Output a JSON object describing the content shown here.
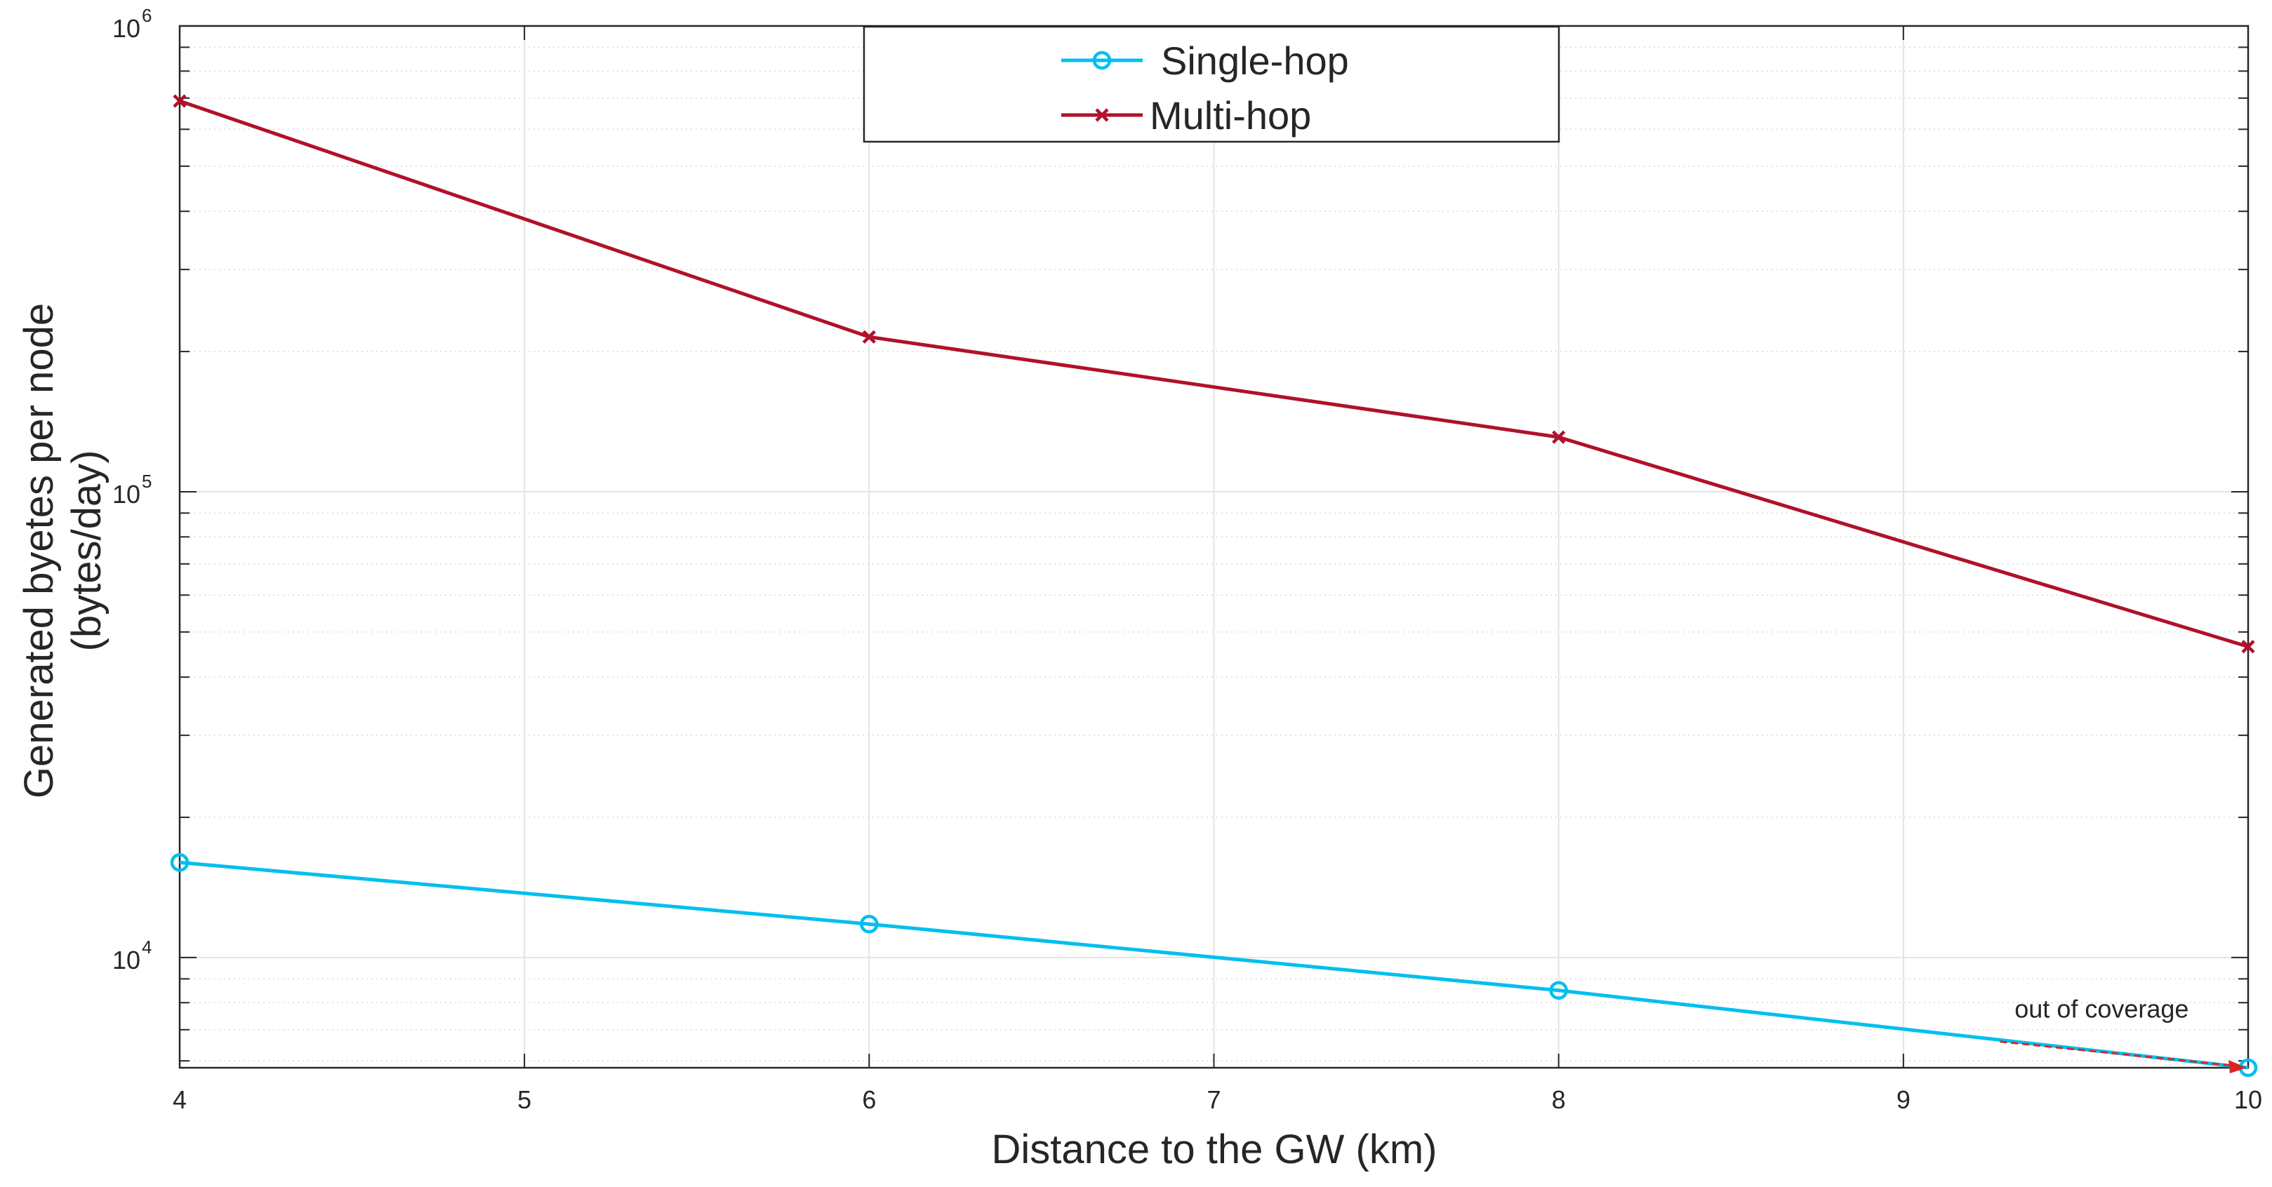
{
  "chart_data": {
    "type": "line",
    "title": "",
    "xlabel": "Distance to the GW (km)",
    "ylabel_line1": "Generated byetes per node",
    "ylabel_line2": "(bytes/day)",
    "xlim": [
      4,
      10
    ],
    "ylim": [
      5800,
      1000000
    ],
    "yscale": "log",
    "grid": true,
    "minor_grid": true,
    "legend_position": "top-center",
    "x_ticks": [
      4,
      5,
      6,
      7,
      8,
      9,
      10
    ],
    "x_tick_labels": [
      "4",
      "5",
      "6",
      "7",
      "8",
      "9",
      "10"
    ],
    "y_ticks": [
      {
        "value": 10000,
        "base": "10",
        "exponent": "4"
      },
      {
        "value": 100000,
        "base": "10",
        "exponent": "5"
      },
      {
        "value": 1000000,
        "base": "10",
        "exponent": "6"
      }
    ],
    "series": [
      {
        "name": "Single-hop",
        "color": "#00BFEF",
        "marker": "circle",
        "x": [
          4,
          6,
          8,
          10
        ],
        "y": [
          16000,
          11800,
          8500,
          5800
        ]
      },
      {
        "name": "Multi-hop",
        "color": "#B0112B",
        "marker": "x",
        "x": [
          4,
          6,
          8,
          10
        ],
        "y": [
          690000,
          215000,
          131000,
          46500
        ]
      }
    ],
    "annotations": [
      {
        "text": "out of coverage",
        "x": 9.28,
        "y": 6600,
        "arrow_to_x": 10,
        "arrow_to_y": 5800,
        "color": "#D62728"
      }
    ]
  }
}
